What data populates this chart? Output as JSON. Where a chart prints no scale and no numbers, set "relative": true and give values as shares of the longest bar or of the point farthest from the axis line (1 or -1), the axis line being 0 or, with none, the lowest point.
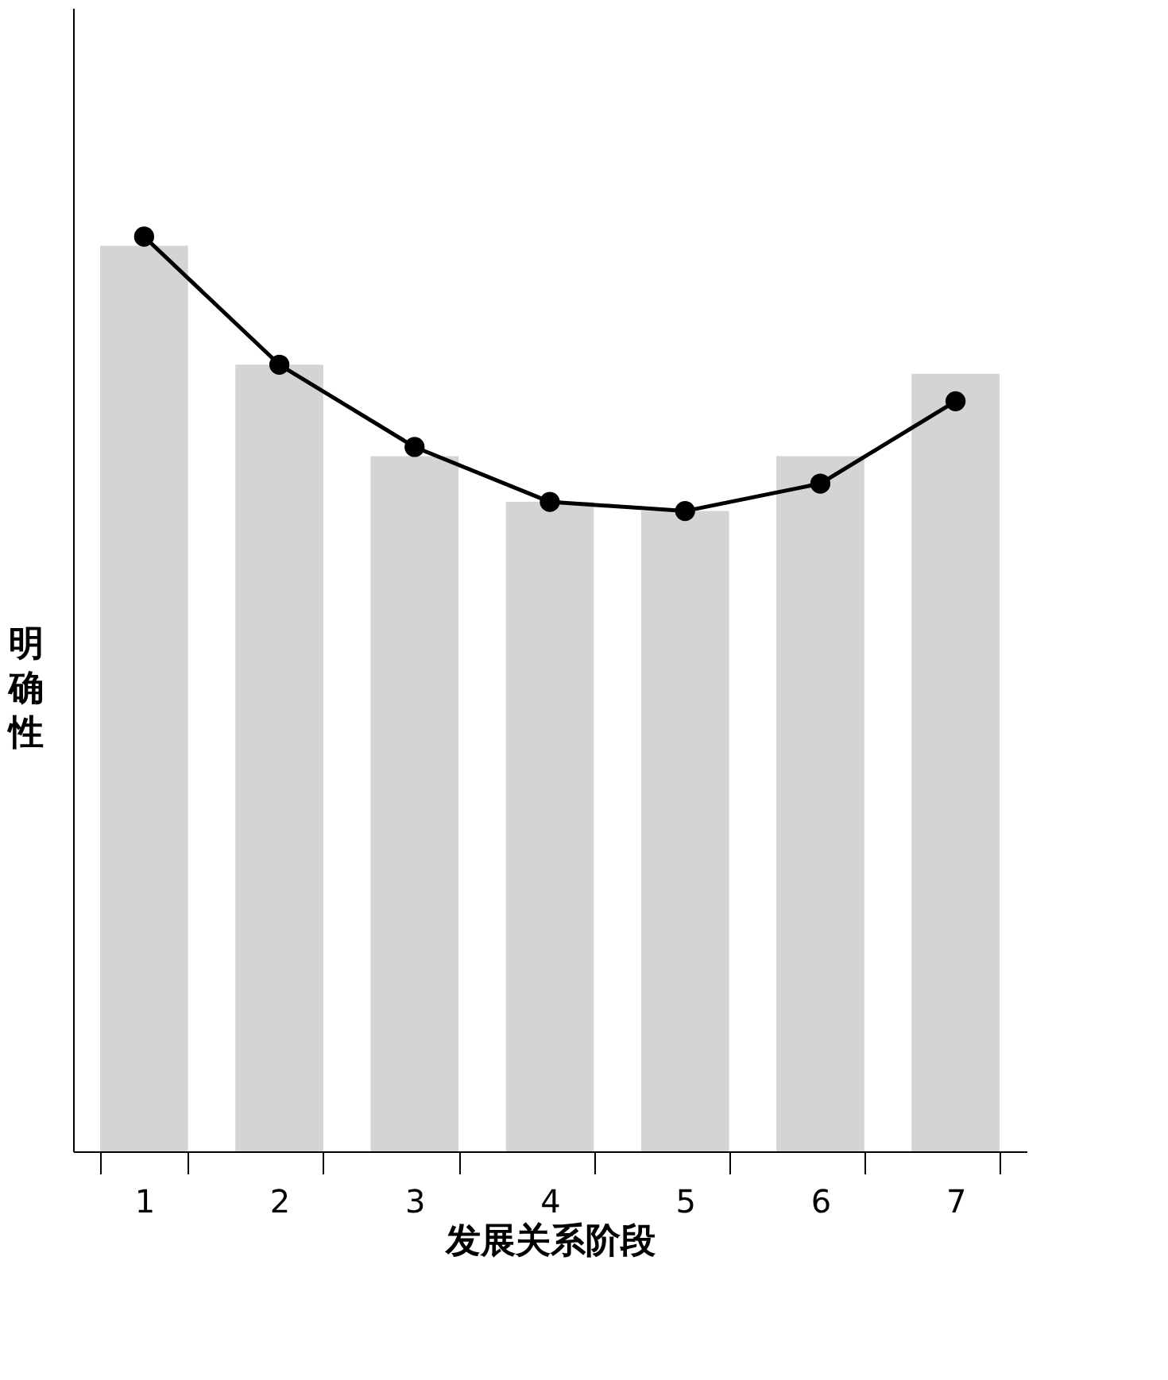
{
  "chart_data": {
    "type": "bar",
    "relative": true,
    "xlabel": "发展关系阶段",
    "ylabel": "明确性",
    "categories": [
      "1",
      "2",
      "3",
      "4",
      "5",
      "6",
      "7"
    ],
    "series": [
      {
        "color": "#cfcfcf",
        "values": [
          0.99,
          0.86,
          0.76,
          0.71,
          0.7,
          0.76,
          0.85
        ]
      },
      {
        "type": "line",
        "color": "#000000",
        "marker": "circle",
        "line_style": "solid",
        "values": [
          1,
          0.86,
          0.77,
          0.71,
          0.7,
          0.73,
          0.82
        ]
      }
    ],
    "grid": false
  }
}
